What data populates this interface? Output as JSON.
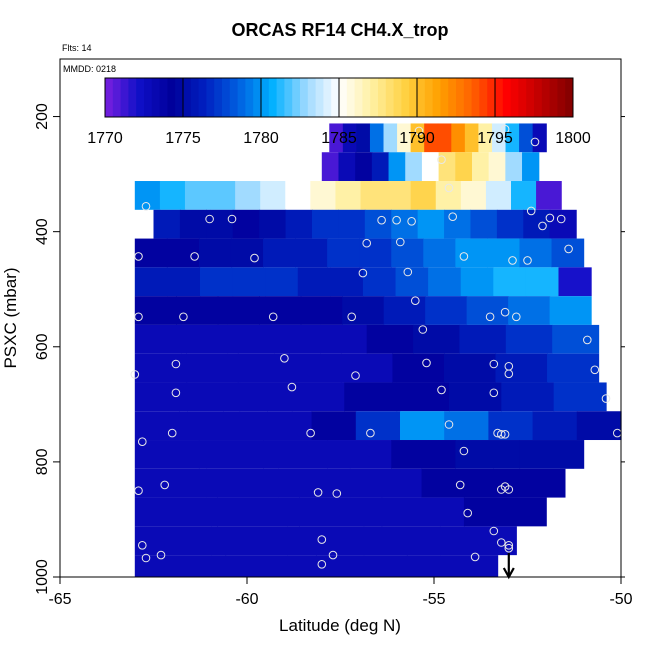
{
  "chart_data": {
    "type": "heatmap",
    "title": "ORCAS RF14 CH4.X_trop",
    "flts_label": "Flts: 14",
    "mmdd_label": "MMDD: 0218",
    "xlabel": "Latitude (deg N)",
    "ylabel": "PSXC (mbar)",
    "xlim": [
      -65,
      -50
    ],
    "ylim": [
      1000,
      100
    ],
    "x_ticks": [
      -65,
      -60,
      -55,
      -50
    ],
    "y_ticks": [
      200,
      400,
      600,
      800,
      1000
    ],
    "colorbar": {
      "min": 1770,
      "max": 1800,
      "ticks": [
        1770,
        1775,
        1780,
        1785,
        1790,
        1795,
        1800
      ],
      "colors": [
        "#7a1fe0",
        "#1010c8",
        "#00009a",
        "#0020c0",
        "#0060e0",
        "#00b0ff",
        "#9ad8ff",
        "#ffffff",
        "#fff0a0",
        "#ffd040",
        "#ffa000",
        "#ff6000",
        "#ff0000",
        "#c00000",
        "#800000"
      ]
    },
    "arrow_at_lat": -53,
    "rows": [
      {
        "p_top": 212,
        "p_bot": 262,
        "lat_min": -52.0,
        "lat_max": -57.8,
        "values": [
          1771,
          1773,
          1775,
          1779,
          1783,
          1786,
          1790,
          1794,
          1794,
          1792,
          1790,
          1787,
          1784,
          1781,
          1778,
          1773
        ]
      },
      {
        "p_top": 262,
        "p_bot": 312,
        "lat_min": -52.2,
        "lat_max": -58.0,
        "values": [
          1771,
          1773,
          1774,
          1776,
          1780,
          1783,
          1785,
          1788,
          1789,
          1787,
          1786,
          1783,
          1780
        ]
      },
      {
        "p_top": 312,
        "p_bot": 362,
        "lat_min": -51.6,
        "lat_max": -63.0,
        "values": [
          1780,
          1781,
          1782,
          1782,
          1783,
          1784,
          1785,
          1786,
          1787,
          1788,
          1788,
          1789,
          1787,
          1786,
          1784,
          1781,
          1771
        ]
      },
      {
        "p_top": 362,
        "p_bot": 412,
        "lat_min": -51.2,
        "lat_max": -62.5,
        "values": [
          1776,
          1775,
          1775,
          1774,
          1775,
          1776,
          1777,
          1777,
          1778,
          1779,
          1780,
          1779,
          1778,
          1777,
          1776,
          1773
        ]
      },
      {
        "p_top": 412,
        "p_bot": 462,
        "lat_min": -51.0,
        "lat_max": -63.0,
        "values": [
          1774,
          1774,
          1775,
          1775,
          1776,
          1776,
          1777,
          1777,
          1778,
          1779,
          1780,
          1780,
          1779,
          1778
        ]
      },
      {
        "p_top": 462,
        "p_bot": 512,
        "lat_min": -50.8,
        "lat_max": -63.0,
        "values": [
          1776,
          1776,
          1777,
          1777,
          1777,
          1776,
          1776,
          1777,
          1778,
          1779,
          1780,
          1781,
          1781,
          1772
        ]
      },
      {
        "p_top": 512,
        "p_bot": 562,
        "lat_min": -50.8,
        "lat_max": -63.0,
        "values": [
          1774,
          1774,
          1774,
          1774,
          1774,
          1775,
          1776,
          1777,
          1778,
          1779,
          1780
        ]
      },
      {
        "p_top": 562,
        "p_bot": 612,
        "lat_min": -50.6,
        "lat_max": -63.0,
        "values": [
          1773,
          1773,
          1773,
          1773,
          1773,
          1774,
          1775,
          1776,
          1777,
          1778
        ]
      },
      {
        "p_top": 612,
        "p_bot": 662,
        "lat_min": -50.6,
        "lat_max": -63.0,
        "values": [
          1773,
          1773,
          1773,
          1773,
          1773,
          1774,
          1775,
          1776,
          1777
        ]
      },
      {
        "p_top": 662,
        "p_bot": 712,
        "lat_min": -50.4,
        "lat_max": -63.0,
        "values": [
          1773,
          1773,
          1773,
          1773,
          1774,
          1774,
          1775,
          1776,
          1777
        ]
      },
      {
        "p_top": 712,
        "p_bot": 762,
        "lat_min": -50.0,
        "lat_max": -63.0,
        "values": [
          1773,
          1773,
          1773,
          1773,
          1774,
          1777,
          1780,
          1779,
          1777,
          1776,
          1775
        ]
      },
      {
        "p_top": 762,
        "p_bot": 812,
        "lat_min": -51.0,
        "lat_max": -63.0,
        "values": [
          1773,
          1773,
          1773,
          1773,
          1774,
          1775,
          1775
        ]
      },
      {
        "p_top": 812,
        "p_bot": 862,
        "lat_min": -51.5,
        "lat_max": -63.0,
        "values": [
          1773,
          1773,
          1773,
          1773,
          1774,
          1774
        ]
      },
      {
        "p_top": 862,
        "p_bot": 912,
        "lat_min": -52.0,
        "lat_max": -63.0,
        "values": [
          1773,
          1773,
          1773,
          1773,
          1774
        ]
      },
      {
        "p_top": 912,
        "p_bot": 962,
        "lat_min": -52.8,
        "lat_max": -63.0,
        "values": [
          1773,
          1773,
          1773,
          1773,
          1773
        ]
      },
      {
        "p_top": 962,
        "p_bot": 1010,
        "lat_min": -53.3,
        "lat_max": -63.0,
        "values": [
          1773,
          1773,
          1773,
          1773
        ]
      }
    ],
    "observations": [
      [
        -55.4,
        225
      ],
      [
        -53.1,
        222
      ],
      [
        -54.8,
        275
      ],
      [
        -52.3,
        244
      ],
      [
        -54.6,
        324
      ],
      [
        -62.7,
        356
      ],
      [
        -52.4,
        364
      ],
      [
        -61.0,
        378
      ],
      [
        -60.4,
        378
      ],
      [
        -56.4,
        380
      ],
      [
        -56.0,
        380
      ],
      [
        -55.6,
        382
      ],
      [
        -54.5,
        374
      ],
      [
        -52.1,
        390
      ],
      [
        -51.9,
        376
      ],
      [
        -51.6,
        378
      ],
      [
        -56.8,
        420
      ],
      [
        -55.9,
        418
      ],
      [
        -51.4,
        430
      ],
      [
        -62.9,
        443
      ],
      [
        -61.4,
        443
      ],
      [
        -59.8,
        446
      ],
      [
        -54.2,
        443
      ],
      [
        -52.9,
        450
      ],
      [
        -52.5,
        450
      ],
      [
        -55.7,
        470
      ],
      [
        -56.9,
        472
      ],
      [
        -62.9,
        548
      ],
      [
        -61.7,
        548
      ],
      [
        -59.3,
        548
      ],
      [
        -57.2,
        548
      ],
      [
        -55.5,
        520
      ],
      [
        -53.5,
        548
      ],
      [
        -52.8,
        548
      ],
      [
        -53.1,
        540
      ],
      [
        -55.3,
        570
      ],
      [
        -50.9,
        588
      ],
      [
        -59.0,
        620
      ],
      [
        -55.2,
        628
      ],
      [
        -53.4,
        630
      ],
      [
        -53.0,
        634
      ],
      [
        -63.0,
        648
      ],
      [
        -61.9,
        630
      ],
      [
        -57.1,
        650
      ],
      [
        -53.0,
        647
      ],
      [
        -50.7,
        640
      ],
      [
        -61.9,
        680
      ],
      [
        -58.8,
        670
      ],
      [
        -54.8,
        675
      ],
      [
        -53.4,
        680
      ],
      [
        -50.4,
        690
      ],
      [
        -62.8,
        765
      ],
      [
        -62.0,
        750
      ],
      [
        -58.3,
        750
      ],
      [
        -56.7,
        750
      ],
      [
        -54.6,
        735
      ],
      [
        -53.3,
        750
      ],
      [
        -53.2,
        752
      ],
      [
        -53.1,
        752
      ],
      [
        -50.1,
        750
      ],
      [
        -54.2,
        781
      ],
      [
        -62.9,
        850
      ],
      [
        -62.2,
        840
      ],
      [
        -58.1,
        853
      ],
      [
        -57.6,
        855
      ],
      [
        -54.3,
        840
      ],
      [
        -53.2,
        848
      ],
      [
        -53.0,
        848
      ],
      [
        -53.1,
        843
      ],
      [
        -54.1,
        889
      ],
      [
        -62.8,
        945
      ],
      [
        -62.7,
        967
      ],
      [
        -62.3,
        962
      ],
      [
        -58.0,
        935
      ],
      [
        -57.7,
        962
      ],
      [
        -58.0,
        978
      ],
      [
        -53.4,
        920
      ],
      [
        -53.2,
        940
      ],
      [
        -53.0,
        945
      ],
      [
        -53.9,
        965
      ],
      [
        -53.0,
        950
      ]
    ]
  }
}
